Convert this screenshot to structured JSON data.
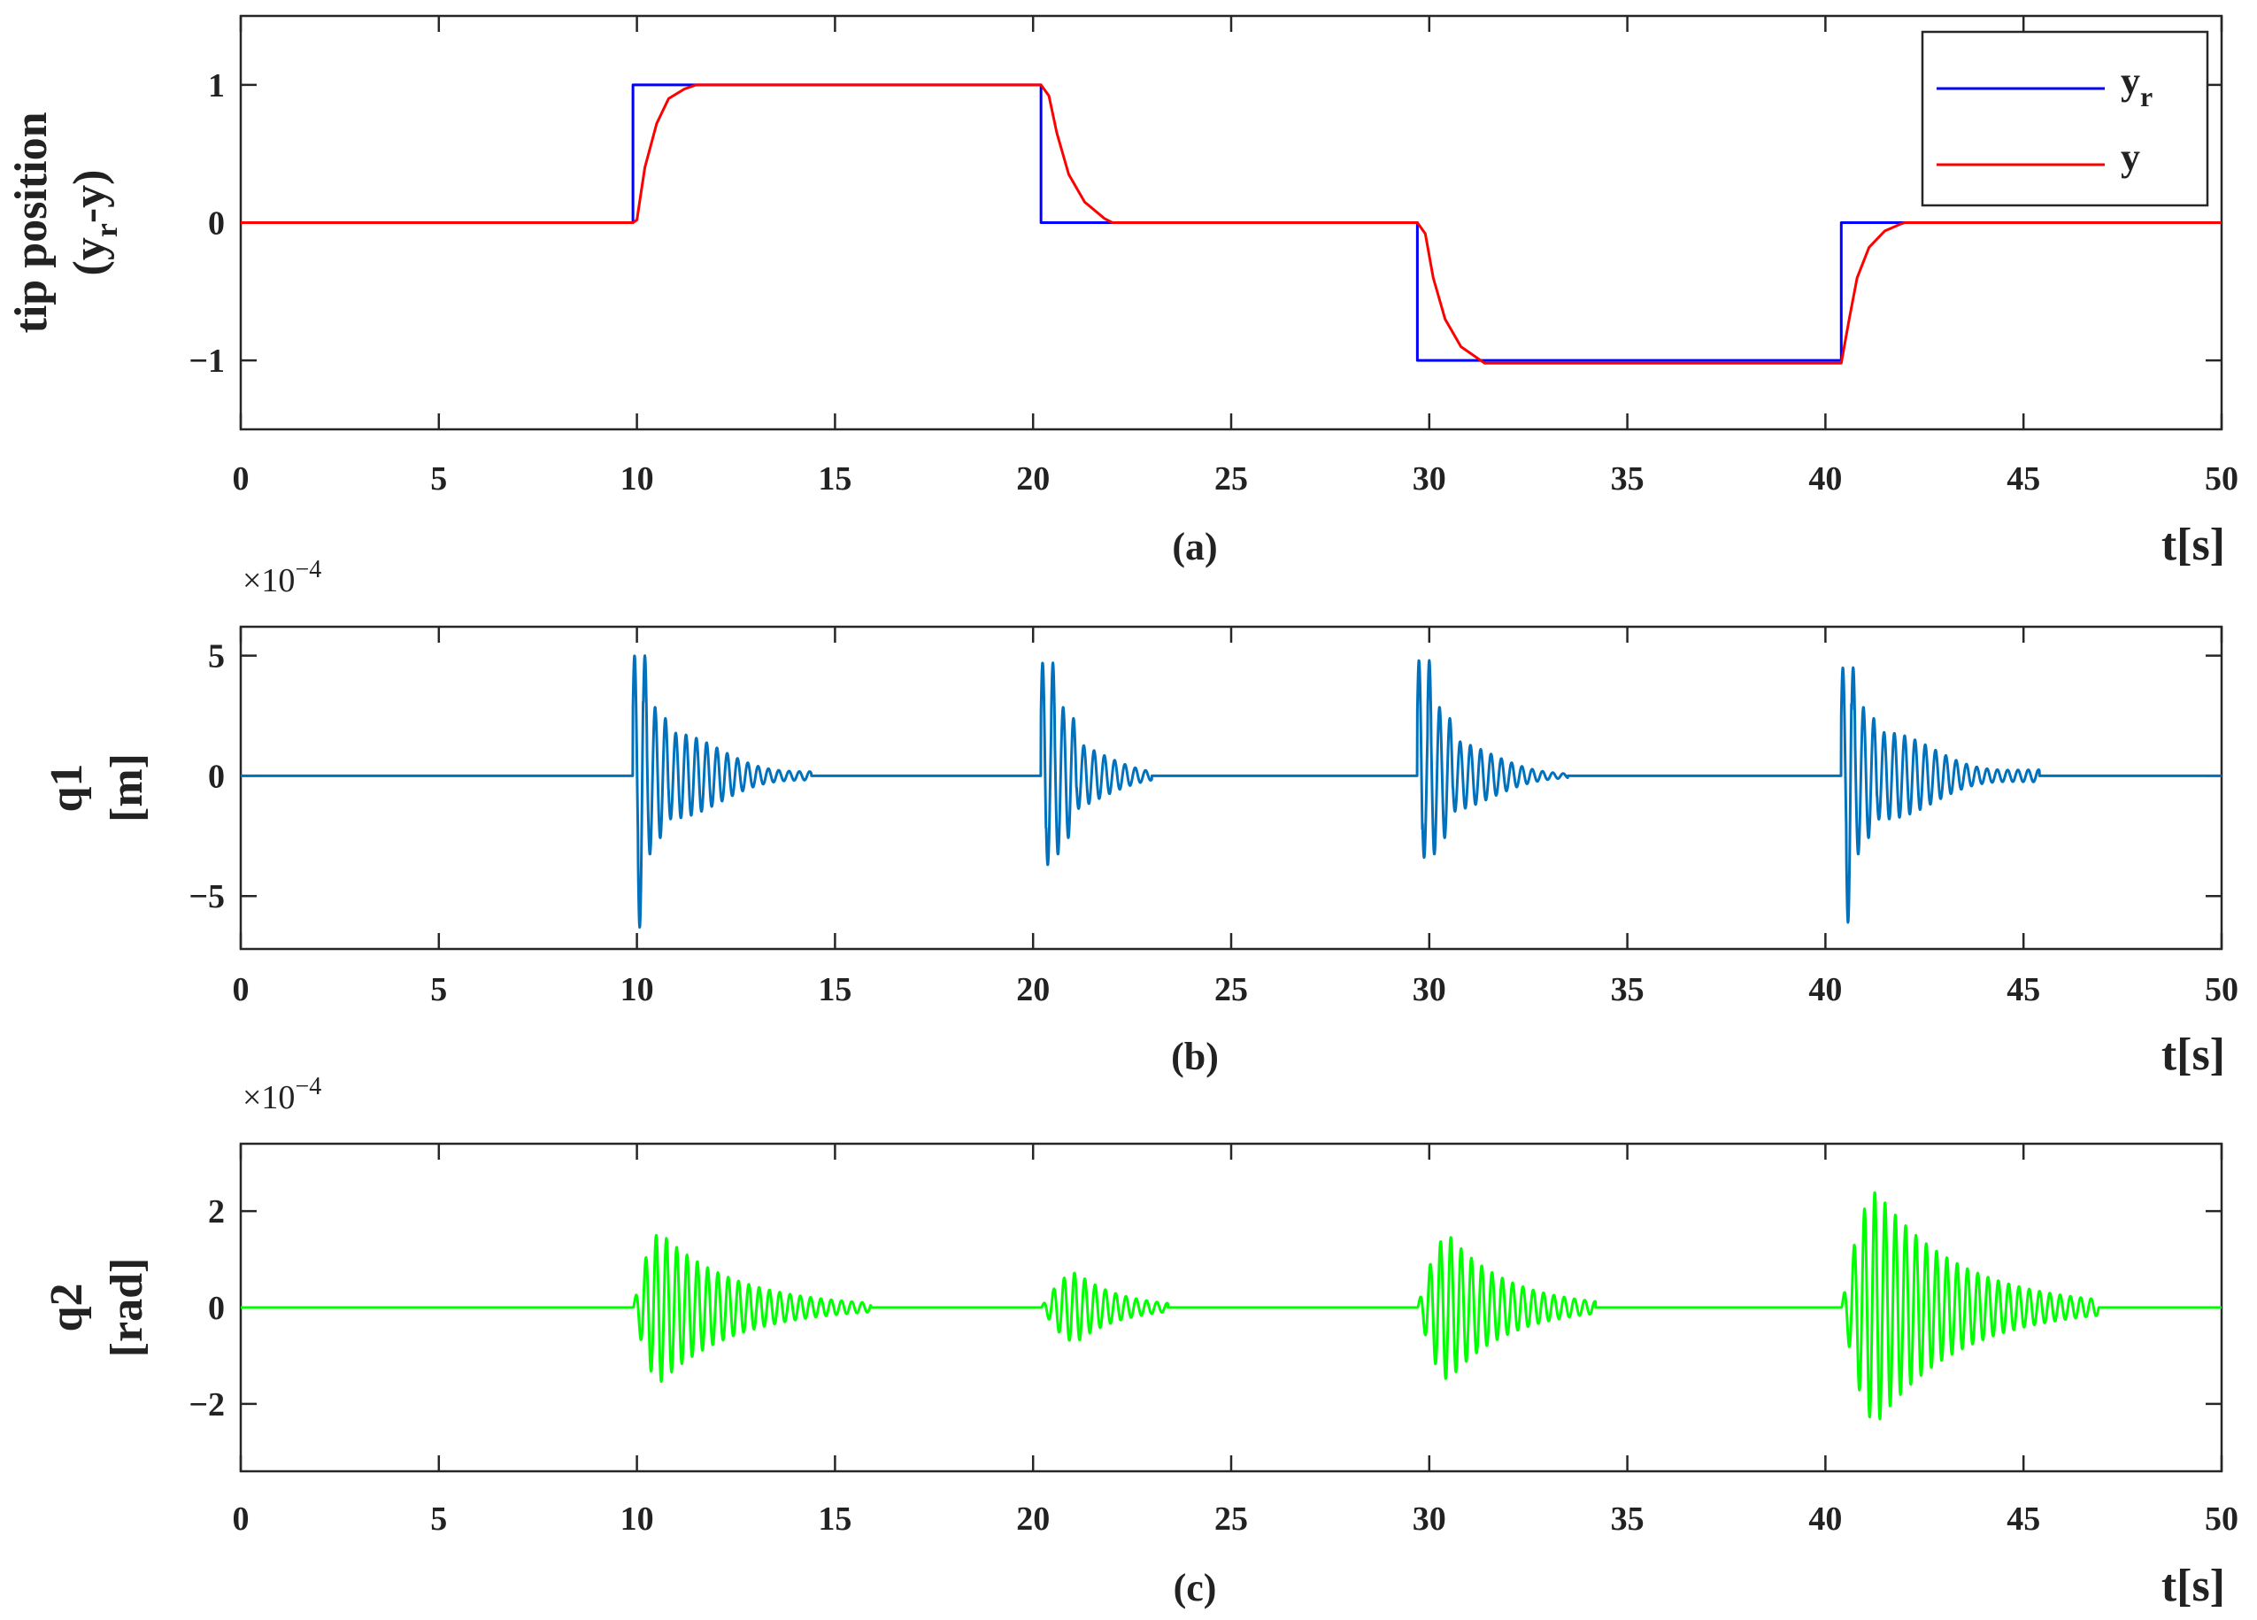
{
  "chart_data": [
    {
      "type": "line",
      "panel": "a",
      "caption": "(a)",
      "ylabel_line1": "tip position",
      "ylabel_line2": "(y",
      "ylabel_sub": "r",
      "ylabel_tail": "-y)",
      "xlabel": "t[s]",
      "xlim": [
        0,
        50
      ],
      "ylim": [
        -1.5,
        1.5
      ],
      "xticks": [
        0,
        5,
        10,
        15,
        20,
        25,
        30,
        35,
        40,
        45,
        50
      ],
      "yticks": [
        -1,
        0,
        1
      ],
      "ytick_labels": [
        "−1",
        "0",
        "1"
      ],
      "grid": false,
      "legend_position": "top-right",
      "series": [
        {
          "name": "y",
          "name_sub": "r",
          "color": "#0000ff",
          "x": [
            0,
            9.9,
            9.9,
            20.2,
            20.2,
            29.7,
            29.7,
            40.4,
            40.4,
            50
          ],
          "y": [
            0,
            0,
            1,
            1,
            0,
            0,
            -1,
            -1,
            0,
            0
          ]
        },
        {
          "name": "y",
          "color": "#ff0000",
          "x": [
            0,
            9.9,
            10.0,
            10.2,
            10.5,
            10.8,
            11.2,
            11.5,
            20.2,
            20.4,
            20.6,
            20.9,
            21.3,
            21.8,
            22.0,
            29.7,
            29.9,
            30.1,
            30.4,
            30.8,
            31.2,
            31.4,
            40.4,
            40.6,
            40.8,
            41.1,
            41.5,
            41.9,
            42.0,
            50
          ],
          "y": [
            0,
            0,
            0.02,
            0.4,
            0.72,
            0.9,
            0.97,
            1,
            1,
            0.92,
            0.65,
            0.35,
            0.15,
            0.03,
            0,
            0,
            -0.08,
            -0.4,
            -0.7,
            -0.9,
            -0.98,
            -1.02,
            -1.02,
            -0.7,
            -0.4,
            -0.18,
            -0.06,
            -0.01,
            0,
            0
          ]
        }
      ]
    },
    {
      "type": "line",
      "panel": "b",
      "caption": "(b)",
      "ylabel_line1": "q1",
      "ylabel_line2": "[m]",
      "xlabel": "t[s]",
      "scale_prefix": "×10",
      "scale_exponent": "−4",
      "xlim": [
        0,
        50
      ],
      "ylim": [
        -7.2,
        6.2
      ],
      "xticks": [
        0,
        5,
        10,
        15,
        20,
        25,
        30,
        35,
        40,
        45,
        50
      ],
      "yticks": [
        -5,
        0,
        5
      ],
      "ytick_labels": [
        "−5",
        "0",
        "5"
      ],
      "grid": false,
      "series": [
        {
          "color": "#0072bd",
          "bursts": [
            {
              "t0": 9.9,
              "peak_pos": 5.0,
              "peak_neg": -6.3,
              "tail": 1.8,
              "decay": 1.7,
              "duration": 4.5
            },
            {
              "t0": 20.2,
              "peak_pos": 4.7,
              "peak_neg": -3.7,
              "tail": 1.4,
              "decay": 0.9,
              "duration": 2.8
            },
            {
              "t0": 29.7,
              "peak_pos": 4.8,
              "peak_neg": -3.4,
              "tail": 1.5,
              "decay": 1.2,
              "duration": 3.8
            },
            {
              "t0": 40.4,
              "peak_pos": 4.5,
              "peak_neg": -6.1,
              "tail": 1.8,
              "decay": 2.0,
              "duration": 5.0
            }
          ],
          "osc_period": 0.26
        }
      ]
    },
    {
      "type": "line",
      "panel": "c",
      "caption": "(c)",
      "ylabel_line1": "q2",
      "ylabel_line2": "[rad]",
      "xlabel": "t[s]",
      "scale_prefix": "×10",
      "scale_exponent": "−4",
      "xlim": [
        0,
        50
      ],
      "ylim": [
        -3.4,
        3.4
      ],
      "xticks": [
        0,
        5,
        10,
        15,
        20,
        25,
        30,
        35,
        40,
        45,
        50
      ],
      "yticks": [
        -2,
        0,
        2
      ],
      "ytick_labels": [
        "−2",
        "0",
        "2"
      ],
      "grid": false,
      "series": [
        {
          "color": "#00ff00",
          "bursts": [
            {
              "t0": 9.9,
              "peak": 1.55,
              "rise": 0.7,
              "decay": 1.9,
              "duration": 6.0
            },
            {
              "t0": 20.2,
              "peak": 0.72,
              "rise": 0.9,
              "decay": 1.1,
              "duration": 3.2
            },
            {
              "t0": 29.7,
              "peak": 1.5,
              "rise": 0.8,
              "decay": 1.5,
              "duration": 4.5
            },
            {
              "t0": 40.4,
              "peak": 2.4,
              "rise": 0.9,
              "decay": 2.1,
              "duration": 6.5
            }
          ],
          "osc_period": 0.26
        }
      ]
    }
  ]
}
